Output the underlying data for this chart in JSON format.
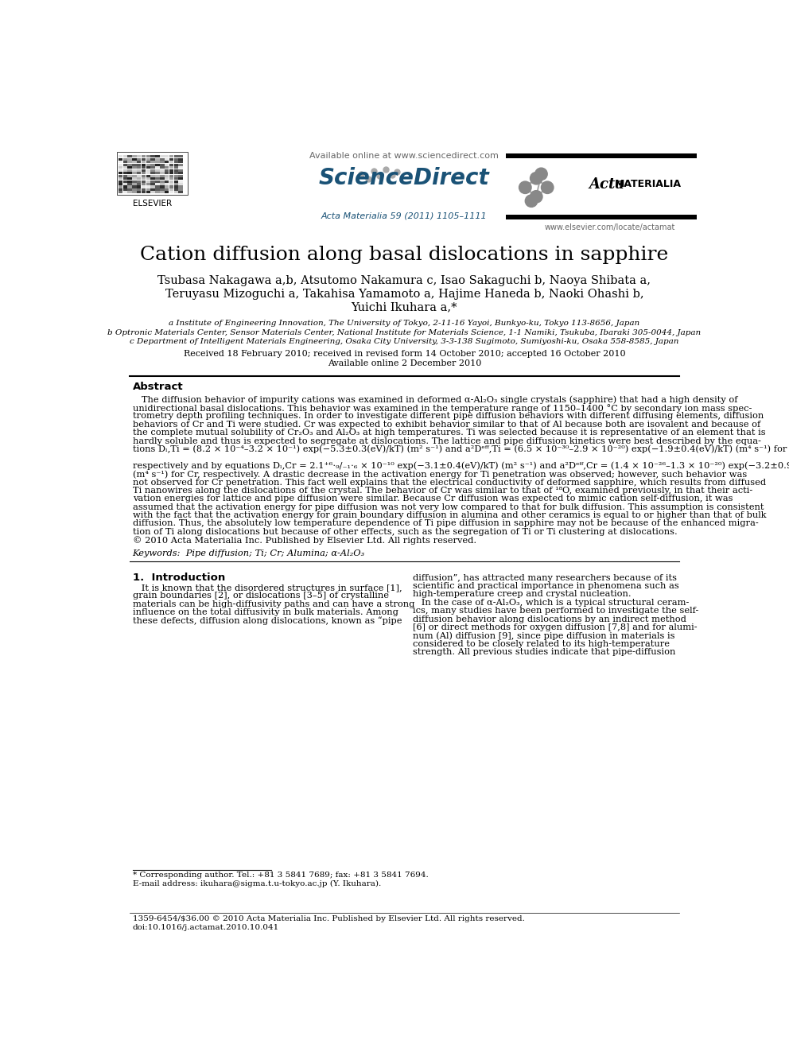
{
  "bg_color": "#ffffff",
  "title": "Cation diffusion along basal dislocations in sapphire",
  "affil_a": "a Institute of Engineering Innovation, The University of Tokyo, 2-11-16 Yayoi, Bunkyo-ku, Tokyo 113-8656, Japan",
  "affil_b": "b Optronic Materials Center, Sensor Materials Center, National Institute for Materials Science, 1-1 Namiki, Tsukuba, Ibaraki 305-0044, Japan",
  "affil_c": "c Department of Intelligent Materials Engineering, Osaka City University, 3-3-138 Sugimoto, Sumiyoshi-ku, Osaka 558-8585, Japan",
  "received": "Received 18 February 2010; received in revised form 14 October 2010; accepted 16 October 2010",
  "available": "Available online 2 December 2010",
  "journal_ref": "Acta Materialia 59 (2011) 1105–1111",
  "available_online": "Available online at www.sciencedirect.com",
  "elsevier_url": "www.elsevier.com/locate/actamat",
  "abstract_title": "Abstract",
  "copyright": "© 2010 Acta Materialia Inc. Published by Elsevier Ltd. All rights reserved.",
  "keywords": "Keywords:  Pipe diffusion; Ti; Cr; Alumina; α-Al₂O₃",
  "footnote_star": "* Corresponding author. Tel.: +81 3 5841 7689; fax: +81 3 5841 7694.",
  "footnote_email": "E-mail address: ikuhara@sigma.t.u-tokyo.ac.jp (Y. Ikuhara).",
  "bottom_issn": "1359-6454/$36.00 © 2010 Acta Materialia Inc. Published by Elsevier Ltd. All rights reserved.",
  "bottom_doi": "doi:10.1016/j.actamat.2010.10.041"
}
